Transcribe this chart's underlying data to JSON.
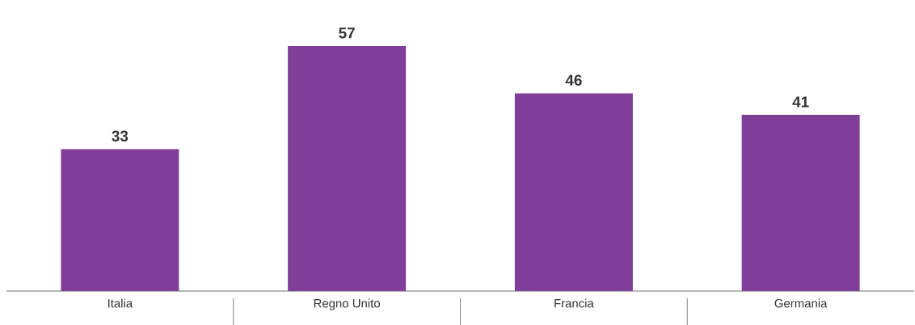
{
  "chart_data": {
    "type": "bar",
    "categories": [
      "Italia",
      "Regno Unito",
      "Francia",
      "Germania"
    ],
    "values": [
      33,
      57,
      46,
      41
    ],
    "color": "#7f3f98",
    "data_labels": true
  }
}
